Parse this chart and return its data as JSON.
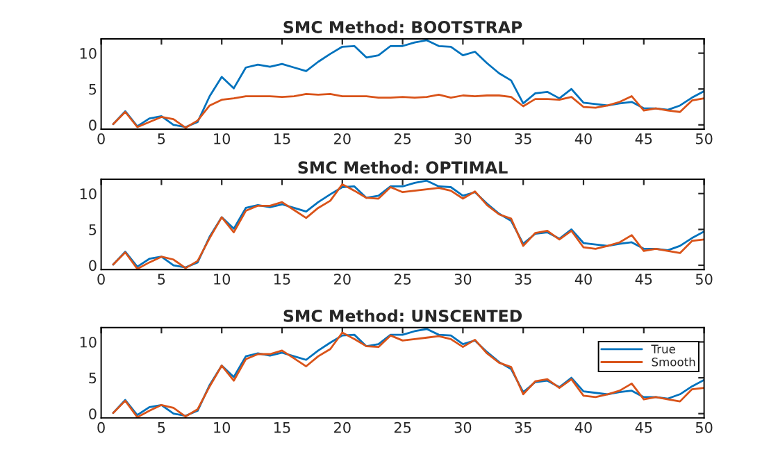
{
  "chart_data": [
    {
      "type": "line",
      "title": "SMC Method: BOOTSTRAP",
      "x": [
        1,
        2,
        3,
        4,
        5,
        6,
        7,
        8,
        9,
        10,
        11,
        12,
        13,
        14,
        15,
        16,
        17,
        18,
        19,
        20,
        21,
        22,
        23,
        24,
        25,
        26,
        27,
        28,
        29,
        30,
        31,
        32,
        33,
        34,
        35,
        36,
        37,
        38,
        39,
        40,
        41,
        42,
        43,
        44,
        45,
        46,
        47,
        48,
        49,
        50
      ],
      "xlim": [
        0,
        50
      ],
      "xticks": [
        0,
        5,
        10,
        15,
        20,
        25,
        30,
        35,
        40,
        45,
        50
      ],
      "ylim": [
        -0.6,
        12
      ],
      "yticks": [
        0,
        5,
        10
      ],
      "grid": false,
      "legend": false,
      "series": [
        {
          "color": "#0072bd",
          "values": [
            0.1,
            1.9,
            -0.2,
            0.9,
            1.2,
            0.0,
            -0.3,
            0.4,
            4.0,
            6.7,
            5.1,
            8.0,
            8.4,
            8.1,
            8.5,
            8.0,
            7.5,
            8.8,
            9.9,
            10.9,
            11.0,
            9.4,
            9.7,
            11.0,
            11.0,
            11.5,
            11.8,
            11.0,
            10.9,
            9.7,
            10.2,
            8.6,
            7.2,
            6.2,
            3.0,
            4.4,
            4.6,
            3.7,
            5.0,
            3.1,
            2.9,
            2.7,
            3.0,
            3.2,
            2.3,
            2.3,
            2.1,
            2.7,
            3.8,
            4.7
          ]
        },
        {
          "color": "#d95319",
          "values": [
            0.1,
            1.8,
            -0.3,
            0.4,
            1.1,
            0.8,
            -0.4,
            0.6,
            2.7,
            3.5,
            3.7,
            4.0,
            4.0,
            4.0,
            3.9,
            4.0,
            4.3,
            4.2,
            4.3,
            4.0,
            4.0,
            4.0,
            3.8,
            3.8,
            3.9,
            3.8,
            3.9,
            4.2,
            3.8,
            4.1,
            4.0,
            4.1,
            4.1,
            3.9,
            2.6,
            3.6,
            3.6,
            3.5,
            3.9,
            2.5,
            2.4,
            2.7,
            3.2,
            4.0,
            2.0,
            2.3,
            2.0,
            1.8,
            3.4,
            3.7
          ]
        }
      ]
    },
    {
      "type": "line",
      "title": "SMC Method: OPTIMAL",
      "x": [
        1,
        2,
        3,
        4,
        5,
        6,
        7,
        8,
        9,
        10,
        11,
        12,
        13,
        14,
        15,
        16,
        17,
        18,
        19,
        20,
        21,
        22,
        23,
        24,
        25,
        26,
        27,
        28,
        29,
        30,
        31,
        32,
        33,
        34,
        35,
        36,
        37,
        38,
        39,
        40,
        41,
        42,
        43,
        44,
        45,
        46,
        47,
        48,
        49,
        50
      ],
      "xlim": [
        0,
        50
      ],
      "xticks": [
        0,
        5,
        10,
        15,
        20,
        25,
        30,
        35,
        40,
        45,
        50
      ],
      "ylim": [
        -0.6,
        12
      ],
      "yticks": [
        0,
        5,
        10
      ],
      "grid": false,
      "legend": false,
      "series": [
        {
          "color": "#0072bd",
          "values": [
            0.1,
            1.9,
            -0.2,
            0.9,
            1.2,
            0.0,
            -0.3,
            0.4,
            4.0,
            6.7,
            5.1,
            8.0,
            8.4,
            8.1,
            8.5,
            8.0,
            7.5,
            8.8,
            9.9,
            10.9,
            11.0,
            9.4,
            9.7,
            11.0,
            11.0,
            11.5,
            11.8,
            11.0,
            10.9,
            9.7,
            10.2,
            8.6,
            7.2,
            6.2,
            3.0,
            4.4,
            4.6,
            3.7,
            5.0,
            3.1,
            2.9,
            2.7,
            3.0,
            3.2,
            2.3,
            2.3,
            2.1,
            2.7,
            3.8,
            4.7
          ]
        },
        {
          "color": "#d95319",
          "values": [
            0.1,
            1.8,
            -0.5,
            0.4,
            1.2,
            0.8,
            -0.4,
            0.6,
            3.8,
            6.7,
            4.6,
            7.6,
            8.3,
            8.3,
            8.8,
            7.7,
            6.6,
            8.0,
            9.0,
            11.3,
            10.4,
            9.4,
            9.3,
            10.9,
            10.2,
            10.4,
            10.6,
            10.8,
            10.4,
            9.3,
            10.3,
            8.4,
            7.1,
            6.5,
            2.7,
            4.5,
            4.8,
            3.6,
            4.8,
            2.5,
            2.3,
            2.7,
            3.2,
            4.2,
            2.0,
            2.3,
            2.0,
            1.7,
            3.4,
            3.6
          ]
        }
      ]
    },
    {
      "type": "line",
      "title": "SMC Method: UNSCENTED",
      "x": [
        1,
        2,
        3,
        4,
        5,
        6,
        7,
        8,
        9,
        10,
        11,
        12,
        13,
        14,
        15,
        16,
        17,
        18,
        19,
        20,
        21,
        22,
        23,
        24,
        25,
        26,
        27,
        28,
        29,
        30,
        31,
        32,
        33,
        34,
        35,
        36,
        37,
        38,
        39,
        40,
        41,
        42,
        43,
        44,
        45,
        46,
        47,
        48,
        49,
        50
      ],
      "xlim": [
        0,
        50
      ],
      "xticks": [
        0,
        5,
        10,
        15,
        20,
        25,
        30,
        35,
        40,
        45,
        50
      ],
      "ylim": [
        -0.6,
        12
      ],
      "yticks": [
        0,
        5,
        10
      ],
      "grid": false,
      "legend": "right",
      "series": [
        {
          "name": "True",
          "color": "#0072bd",
          "values": [
            0.1,
            1.9,
            -0.2,
            0.9,
            1.2,
            0.0,
            -0.3,
            0.4,
            4.0,
            6.7,
            5.1,
            8.0,
            8.4,
            8.1,
            8.5,
            8.0,
            7.5,
            8.8,
            9.9,
            10.9,
            11.0,
            9.4,
            9.7,
            11.0,
            11.0,
            11.5,
            11.8,
            11.0,
            10.9,
            9.7,
            10.2,
            8.6,
            7.2,
            6.2,
            3.0,
            4.4,
            4.6,
            3.7,
            5.0,
            3.1,
            2.9,
            2.7,
            3.0,
            3.2,
            2.3,
            2.3,
            2.1,
            2.7,
            3.8,
            4.7
          ]
        },
        {
          "name": "Smooth",
          "color": "#d95319",
          "values": [
            0.1,
            1.8,
            -0.5,
            0.4,
            1.2,
            0.8,
            -0.4,
            0.6,
            3.8,
            6.7,
            4.6,
            7.6,
            8.3,
            8.3,
            8.8,
            7.7,
            6.6,
            8.0,
            9.0,
            11.3,
            10.4,
            9.4,
            9.3,
            10.9,
            10.2,
            10.4,
            10.6,
            10.8,
            10.4,
            9.3,
            10.3,
            8.4,
            7.1,
            6.5,
            2.7,
            4.5,
            4.8,
            3.6,
            4.8,
            2.5,
            2.3,
            2.7,
            3.2,
            4.2,
            2.0,
            2.3,
            2.0,
            1.7,
            3.4,
            3.6
          ]
        }
      ]
    }
  ]
}
